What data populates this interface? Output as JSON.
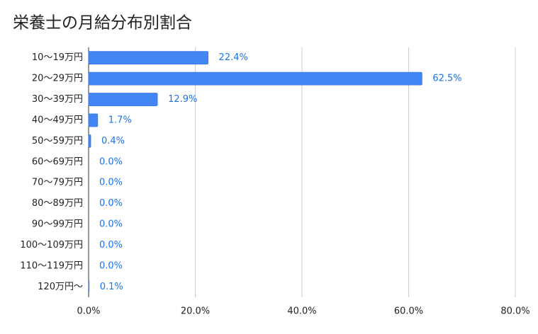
{
  "chart_data": {
    "type": "hbar",
    "title": "栄養士の月給分布別割合",
    "categories": [
      "10〜19万円",
      "20〜29万円",
      "30〜39万円",
      "40〜49万円",
      "50〜59万円",
      "60〜69万円",
      "70〜79万円",
      "80〜89万円",
      "90〜99万円",
      "100〜109万円",
      "110〜119万円",
      "120万円〜"
    ],
    "values": [
      22.4,
      62.5,
      12.9,
      1.7,
      0.4,
      0,
      0,
      0,
      0,
      0,
      0,
      0.1
    ],
    "value_labels": [
      "22.4%",
      "62.5%",
      "12.9%",
      "1.7%",
      "0.4%",
      "0.0%",
      "0.0%",
      "0.0%",
      "0.0%",
      "0.0%",
      "0.0%",
      "0.1%"
    ],
    "color": "#4285f4",
    "xlim": [
      0,
      80
    ],
    "xticks": [
      {
        "value": 0,
        "label": "0.0%"
      },
      {
        "value": 20,
        "label": "20.0%"
      },
      {
        "value": 40,
        "label": "40.0%"
      },
      {
        "value": 60,
        "label": "60.0%"
      },
      {
        "value": 80,
        "label": "80.0%"
      }
    ],
    "grid": true
  }
}
